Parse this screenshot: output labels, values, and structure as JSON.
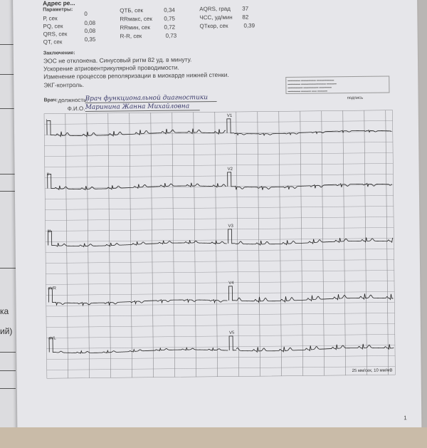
{
  "left_page": {
    "fragments": [
      "ка",
      "ий)"
    ]
  },
  "header": {
    "address_partial": "Адрес ре...",
    "params_title": "Параметры:"
  },
  "params": [
    {
      "label": "Р, сек",
      "value": "0"
    },
    {
      "label": "PQ, сек",
      "value": "0,08"
    },
    {
      "label": "QRS, сек",
      "value": "0,08"
    },
    {
      "label": "QT, сек",
      "value": "0,35"
    },
    {
      "label": "QTБ, сек",
      "value": "0,34"
    },
    {
      "label": "RRмакс, сек",
      "value": "0,75"
    },
    {
      "label": "RRмин, сек",
      "value": "0,72"
    },
    {
      "label": "R-R, сек",
      "value": "0,73"
    },
    {
      "label": "AQRS, град",
      "value": "37"
    },
    {
      "label": "ЧСС, уд/мин",
      "value": "82"
    },
    {
      "label": "QTкор, сек",
      "value": "0,39"
    }
  ],
  "conclusion": {
    "title": "Заключение:",
    "lines": [
      "ЭОС не отклонена. Синусовый ритм 82 уд. в минуту.",
      "Ускорение атриовентрикулярной проводимости.",
      "Изменение процессов реполяризации в миокарде нижней стенки.",
      "ЭКГ-контроль."
    ]
  },
  "doctor": {
    "label": "Врач:",
    "position_label": "должность:",
    "position": "Врач функциональной диагностики",
    "name_label": "Ф.И.О.",
    "name": "Маринина Жанна Михайловна",
    "signature_label": "подпись"
  },
  "ecg": {
    "leads_left": [
      "I",
      "II",
      "III",
      "aVR",
      "aVL"
    ],
    "leads_right": [
      "V1",
      "V2",
      "V3",
      "V4",
      "V5"
    ],
    "scale": "25 мм/сек, 10 мм/мВ",
    "grid_color": "#8a8a8e",
    "trace_color": "#222222"
  },
  "footer": {
    "page_number": "1"
  }
}
